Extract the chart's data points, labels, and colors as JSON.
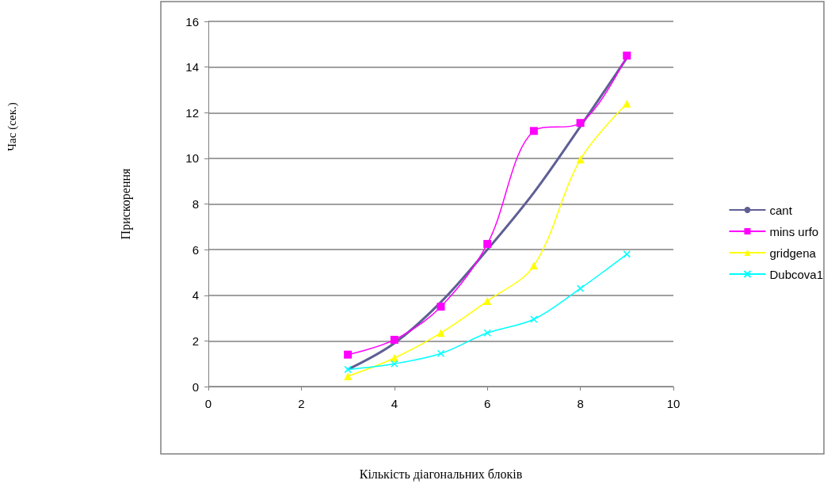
{
  "chart_data": {
    "type": "line",
    "xlabel": "Кількість діагональних блоків",
    "ylabel": "Прискорення",
    "annotations": [
      "Час (сек.)"
    ],
    "x": [
      3,
      4,
      5,
      6,
      7,
      8,
      9
    ],
    "series": [
      {
        "name": "cant",
        "color": "#5f5f96",
        "marker": "none",
        "values": [
          0.75,
          1.9,
          3.7,
          6.0,
          8.5,
          11.4,
          14.4
        ]
      },
      {
        "name": "mins urfo",
        "color": "#ff00ff",
        "marker": "square",
        "values": [
          1.4,
          2.05,
          3.5,
          6.25,
          11.2,
          11.55,
          14.5
        ]
      },
      {
        "name": "gridgena",
        "color": "#ffff00",
        "marker": "triangle",
        "values": [
          0.45,
          1.25,
          2.35,
          3.75,
          5.3,
          9.95,
          12.4
        ]
      },
      {
        "name": "Dubcova1",
        "color": "#00ffff",
        "marker": "cross",
        "values": [
          0.75,
          1.0,
          1.45,
          2.35,
          2.95,
          4.3,
          5.8
        ]
      }
    ],
    "xlim": [
      0,
      10
    ],
    "xticks": [
      0,
      2,
      4,
      6,
      8,
      10
    ],
    "ylim": [
      0,
      16
    ],
    "yticks": [
      0,
      2,
      4,
      6,
      8,
      10,
      12,
      14,
      16
    ],
    "grid": "y",
    "legend": "right",
    "line_style": "solid"
  }
}
